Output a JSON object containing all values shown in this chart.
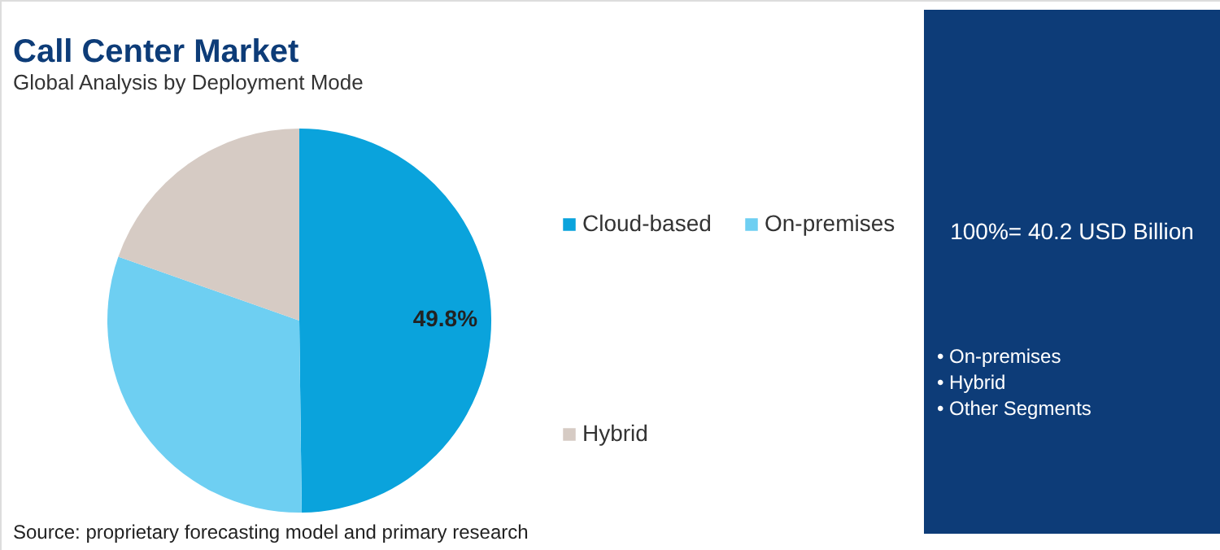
{
  "chart_data": {
    "type": "pie",
    "title": "Call Center Market",
    "subtitle": "Global Analysis by Deployment Mode",
    "categories": [
      "Cloud-based",
      "On-premises",
      "Hybrid"
    ],
    "values": [
      49.8,
      30.6,
      19.6
    ],
    "colors": [
      "#0aa3dc",
      "#6ecff2",
      "#d6cbc4"
    ],
    "value_labels": [
      "49.8%",
      null,
      null
    ],
    "legend": "right",
    "annotations": [
      "Source: proprietary forecasting model and primary research",
      "100%= 40.2 USD Billion",
      "• On-premises",
      "• Hybrid",
      "• Other Segments"
    ]
  }
}
